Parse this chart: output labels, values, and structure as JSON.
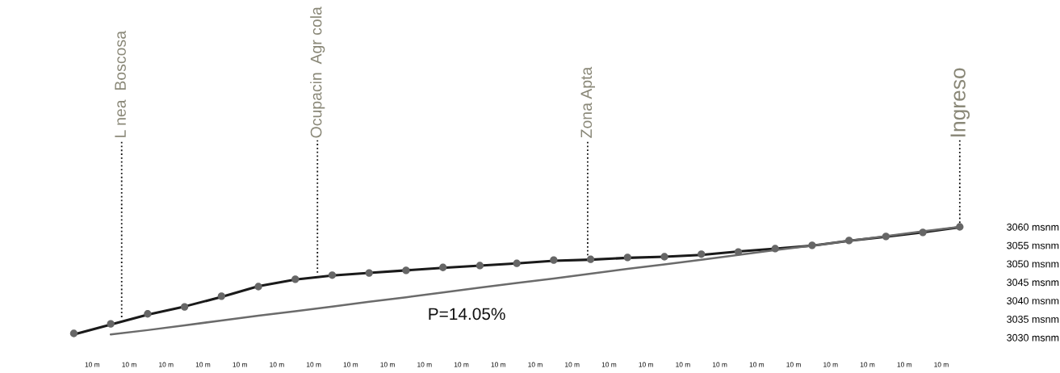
{
  "chart_data": {
    "type": "line",
    "categories": [
      null,
      null,
      null,
      null,
      null,
      null,
      null,
      null,
      null,
      null,
      null,
      null,
      null,
      null,
      null,
      null,
      null,
      null,
      null,
      null,
      null,
      null,
      null,
      null,
      null
    ],
    "series": [
      {
        "color": "#1a1a1a",
        "values": [
          3030.8,
          3033.5,
          3036.2,
          3038.4,
          3041.0,
          3043.9,
          3045.7,
          3046.8,
          3047.5,
          3048.2,
          3048.9,
          3049.5,
          3050.1,
          3050.8,
          3051.1,
          3051.6,
          3051.9,
          3052.4,
          3053.3,
          3054.1,
          3054.9,
          3056.2,
          3057.3,
          3058.5,
          3059.9
        ]
      },
      {
        "type": "scatter",
        "color": "#666666",
        "marker": "circle",
        "values": [
          3031.1,
          3033.7,
          3036.4,
          3038.3,
          3041.2,
          3043.8,
          3045.8,
          3046.9,
          3047.5,
          3048.2,
          3049.0,
          3049.5,
          3050.1,
          3051.0,
          3051.2,
          3051.7,
          3051.9,
          3052.6,
          3053.2,
          3054.1,
          3055.0,
          3056.3,
          3057.4,
          3058.5,
          3060.0
        ]
      },
      {
        "color": "#6b6b6b",
        "values": [
          null,
          3030.8,
          3032.0,
          3033.3,
          3034.6,
          3035.9,
          3037.1,
          3038.4,
          3039.7,
          3040.9,
          3042.2,
          3043.5,
          3044.8,
          3046.0,
          3047.3,
          3048.6,
          3049.8,
          3051.1,
          3052.4,
          3053.7,
          3054.9,
          3056.2,
          3057.5,
          3058.8,
          3060.0
        ]
      }
    ],
    "annotations": [
      "L nea  Boscosa",
      "Ocupacin  Agr cola",
      "Zona Apta",
      "Ingreso",
      "P=14.05%",
      "10 m",
      "10 m",
      "10 m",
      "10 m",
      "10 m",
      "10 m",
      "10 m",
      "10 m",
      "10 m",
      "10 m",
      "10 m",
      "10 m",
      "10 m",
      "10 m",
      "10 m",
      "10 m",
      "10 m",
      "10 m",
      "10 m",
      "10 m",
      "10 m",
      "10 m",
      "10 m",
      "10 m"
    ],
    "ylim": [
      3030,
      3060
    ],
    "yticks": [
      {
        "value": 3030,
        "label": "3030 msnm"
      },
      {
        "value": 3035,
        "label": "3035 msnm"
      },
      {
        "value": 3040,
        "label": "3040 msnm"
      },
      {
        "value": 3045,
        "label": "3045 msnm"
      },
      {
        "value": 3050,
        "label": "3050 msnm"
      },
      {
        "value": 3055,
        "label": "3055 msnm"
      },
      {
        "value": 3060,
        "label": "3060 msnm"
      }
    ],
    "grid": false,
    "legend": false
  }
}
